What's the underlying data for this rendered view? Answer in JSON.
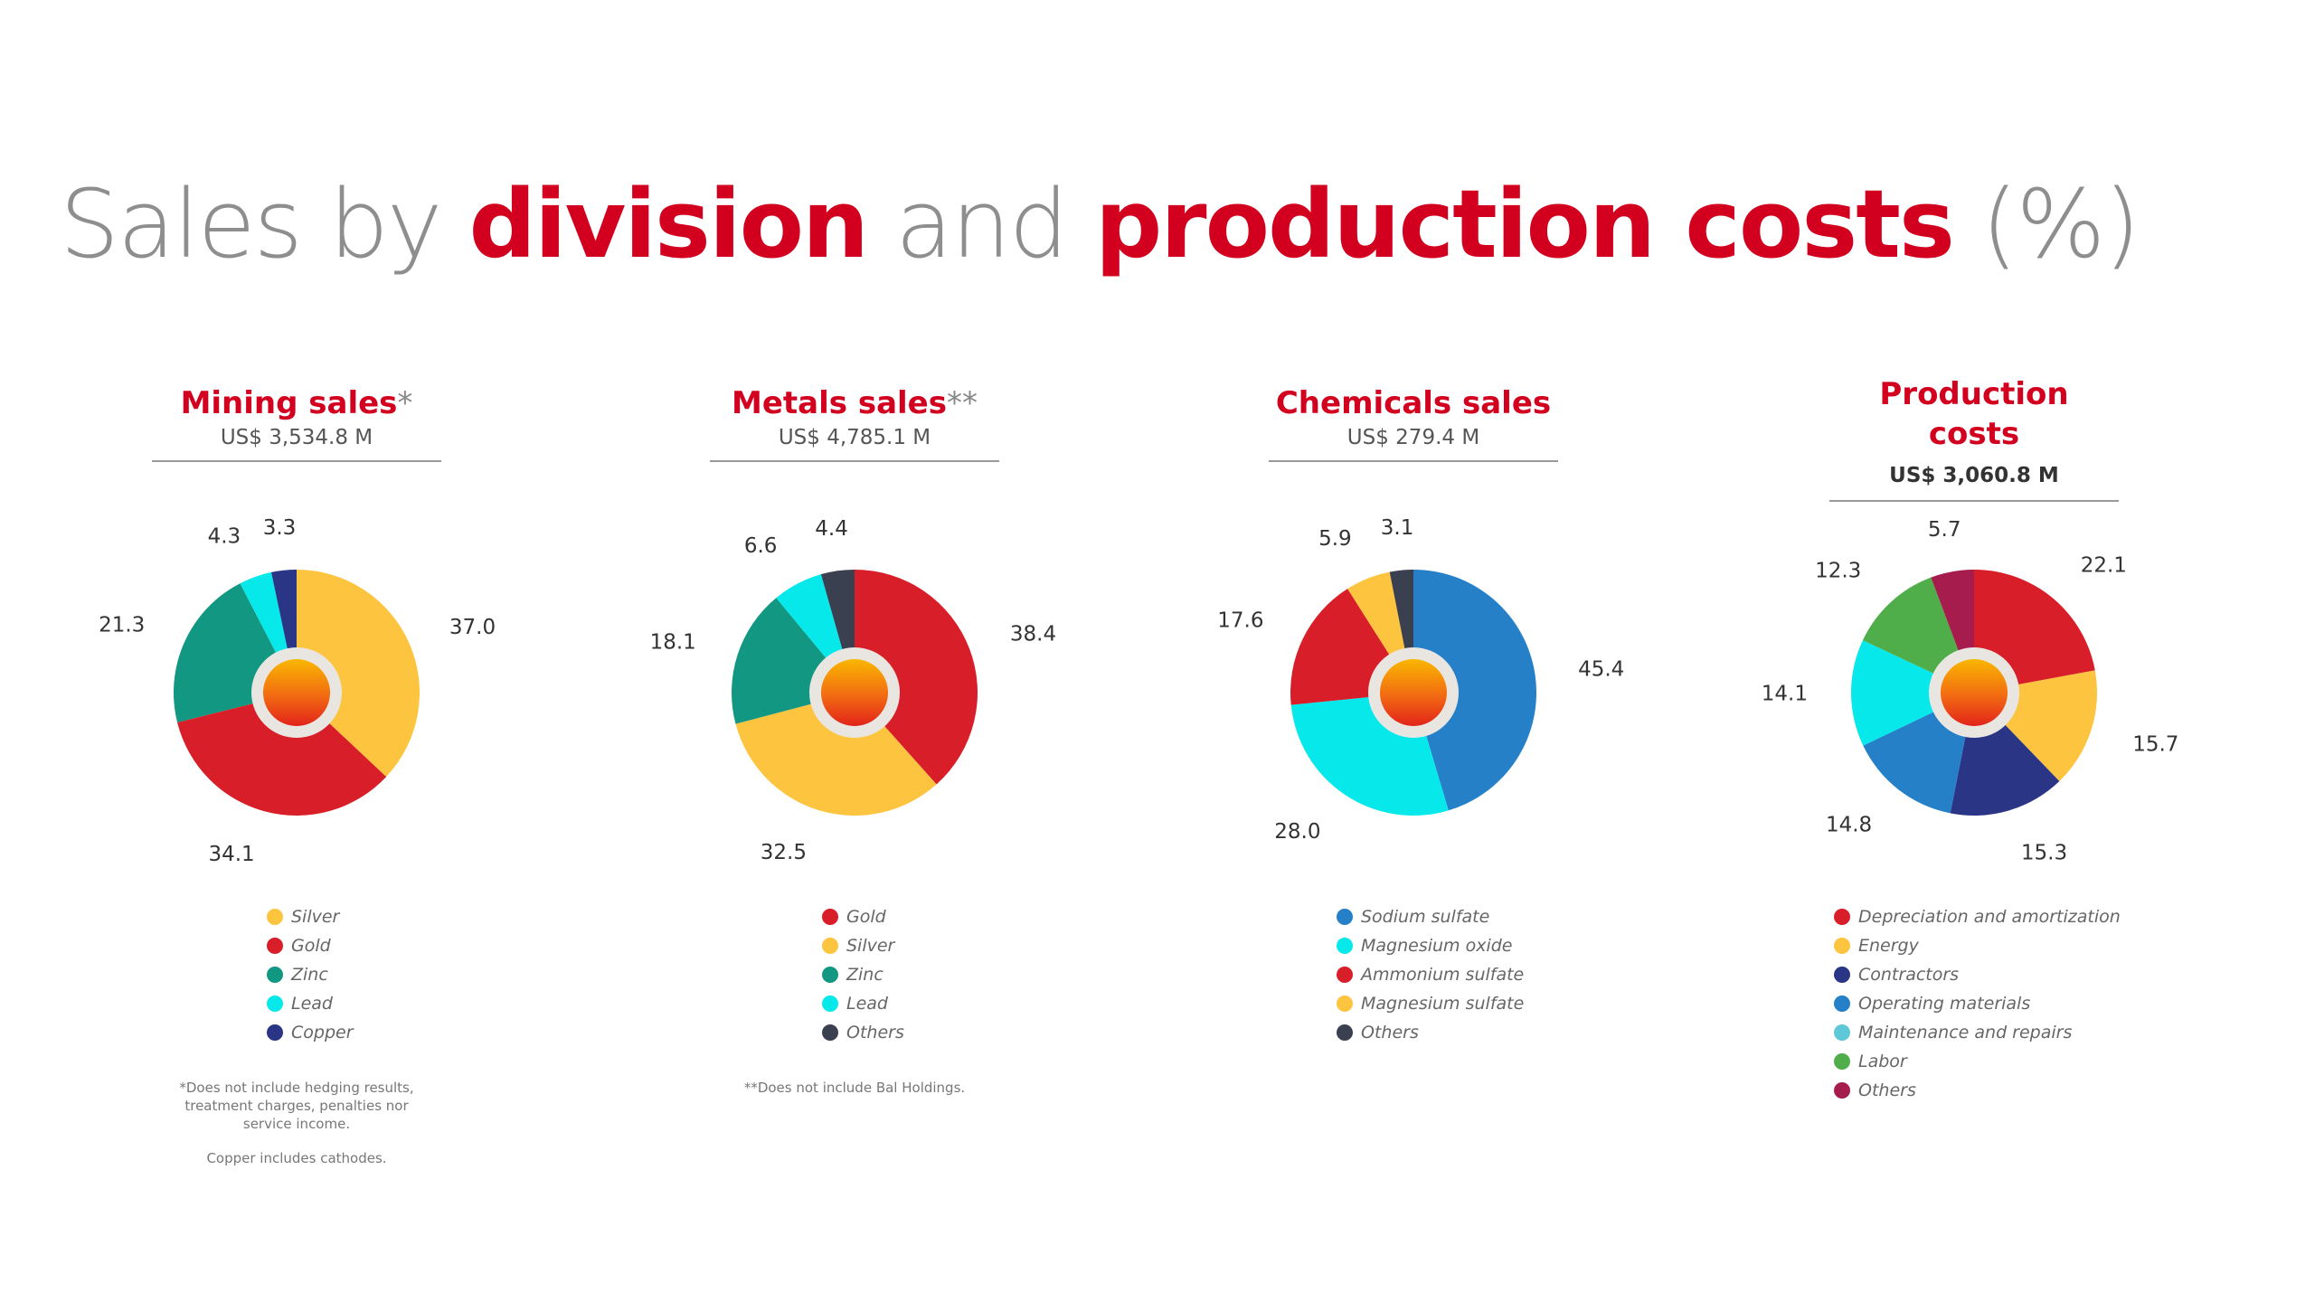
{
  "title": {
    "part1": "Sales by ",
    "part2": "division",
    "part3": " and ",
    "part4": "production costs",
    "part5": " (%)"
  },
  "chart_data": [
    {
      "type": "pie",
      "title": "Mining sales",
      "title_suffix": "*",
      "subtitle": "US$ 3,534.8 M",
      "categories": [
        "Silver",
        "Gold",
        "Zinc",
        "Lead",
        "Copper"
      ],
      "values": [
        37.0,
        34.1,
        21.3,
        4.3,
        3.3
      ],
      "colors": [
        "#fdc440",
        "#d81e28",
        "#119782",
        "#06e8ea",
        "#2b3585"
      ],
      "notes": [
        "*Does not include hedging results, treatment charges, penalties nor service income.",
        "Copper includes cathodes."
      ]
    },
    {
      "type": "pie",
      "title": "Metals sales",
      "title_suffix": "**",
      "subtitle": "US$ 4,785.1 M",
      "categories": [
        "Gold",
        "Silver",
        "Zinc",
        "Lead",
        "Others"
      ],
      "values": [
        38.4,
        32.5,
        18.1,
        6.6,
        4.4
      ],
      "colors": [
        "#d81e28",
        "#fdc440",
        "#119782",
        "#06e8ea",
        "#3b4050"
      ],
      "notes": [
        "**Does not include Bal Holdings."
      ]
    },
    {
      "type": "pie",
      "title": "Chemicals sales",
      "title_suffix": "",
      "subtitle": "US$ 279.4 M",
      "categories": [
        "Sodium sulfate",
        "Magnesium oxide",
        "Ammonium sulfate",
        "Magnesium sulfate",
        "Others"
      ],
      "values": [
        45.4,
        28.0,
        17.6,
        5.9,
        3.1
      ],
      "colors": [
        "#2580c8",
        "#06e8ea",
        "#d81e28",
        "#fdc440",
        "#3b4050"
      ],
      "notes": []
    },
    {
      "type": "pie",
      "title": "Production costs",
      "title_suffix": "",
      "subtitle": "US$ 3,060.8 M",
      "categories": [
        "Depreciation and amortization",
        "Energy",
        "Contractors",
        "Operating materials",
        "Maintenance and repairs",
        "Labor",
        "Others"
      ],
      "values": [
        22.1,
        15.7,
        15.3,
        14.8,
        14.1,
        12.3,
        5.7
      ],
      "colors": [
        "#d81e28",
        "#fdc440",
        "#2b3585",
        "#2580c8",
        "#06e8ea",
        "#4fae4a",
        "#a61d4d"
      ],
      "legend_colors": [
        "#d81e28",
        "#fdc440",
        "#2b3585",
        "#2580c8",
        "#5ec8d8",
        "#4fae4a",
        "#a61d4d"
      ],
      "notes": []
    }
  ]
}
